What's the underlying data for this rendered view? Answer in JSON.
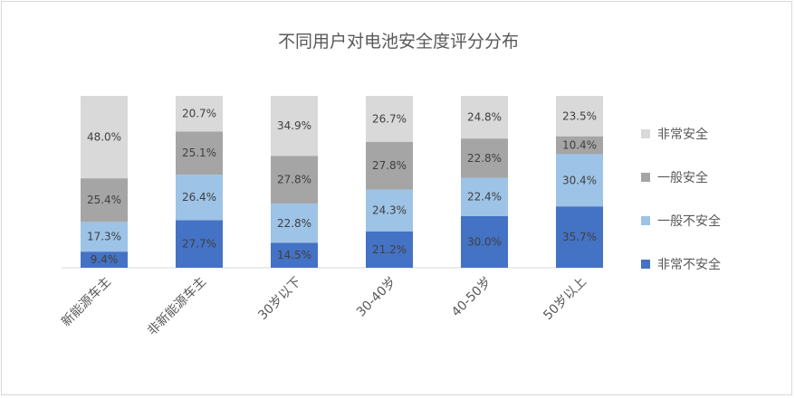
{
  "chart_data": {
    "type": "bar",
    "stacked": true,
    "percent": true,
    "title": "不同用户对电池安全度评分分布",
    "categories": [
      "新能源车主",
      "非新能源车主",
      "30岁以下",
      "30-40岁",
      "40-50岁",
      "50岁以上"
    ],
    "series": [
      {
        "name": "非常不安全",
        "color": "#4472c4",
        "values": [
          9.4,
          27.7,
          14.5,
          21.2,
          30.0,
          35.7
        ],
        "labels": [
          "9.4%",
          "27.7%",
          "14.5%",
          "21.2%",
          "30.0%",
          "35.7%"
        ]
      },
      {
        "name": "一般不安全",
        "color": "#9dc3e6",
        "values": [
          17.3,
          26.4,
          22.8,
          24.3,
          22.4,
          30.4
        ],
        "labels": [
          "17.3%",
          "26.4%",
          "22.8%",
          "24.3%",
          "22.4%",
          "30.4%"
        ]
      },
      {
        "name": "一般安全",
        "color": "#a5a5a5",
        "values": [
          25.4,
          25.1,
          27.8,
          27.8,
          22.8,
          10.4
        ],
        "labels": [
          "25.4%",
          "25.1%",
          "27.8%",
          "27.8%",
          "22.8%",
          "10.4%"
        ]
      },
      {
        "name": "非常安全",
        "color": "#d9d9d9",
        "values": [
          48.0,
          20.7,
          34.9,
          26.7,
          24.8,
          23.5
        ],
        "labels": [
          "48.0%",
          "20.7%",
          "34.9%",
          "26.7%",
          "24.8%",
          "23.5%"
        ]
      }
    ],
    "legend_order": [
      3,
      2,
      1,
      0
    ],
    "legend_position": "right",
    "grid": false
  }
}
